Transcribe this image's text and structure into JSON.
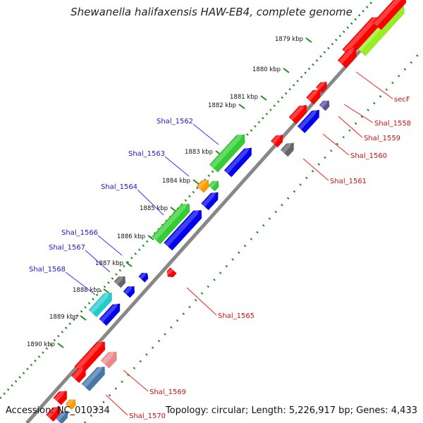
{
  "title": "Shewanella halifaxensis HAW-EB4, complete genome",
  "footer": {
    "accession": "Accession: NC_010334",
    "topology": "Topology: circular; Length: 5,226,917 bp; Genes: 4,433"
  },
  "colors": {
    "backbone": "#888888",
    "tick_dots": "#228822",
    "label_blue": "#1a1acc",
    "label_red": "#cc1111",
    "label_line_blue": "#3333ff",
    "label_line_red": "#ee2222"
  },
  "ticks": [
    {
      "label": "1879 kbp"
    },
    {
      "label": "1880 kbp"
    },
    {
      "label": "1881 kbp"
    },
    {
      "label": "1882 kbp"
    },
    {
      "label": "1883 kbp"
    },
    {
      "label": "1884 kbp"
    },
    {
      "label": "1885 kbp"
    },
    {
      "label": "1886 kbp"
    },
    {
      "label": "1887 kbp"
    },
    {
      "label": "1888 kbp"
    },
    {
      "label": "1889 kbp"
    },
    {
      "label": "1890 kbp"
    }
  ],
  "genes_left": [
    {
      "name": "Shal_1562"
    },
    {
      "name": "Shal_1563"
    },
    {
      "name": "Shal_1564"
    },
    {
      "name": "Shal_1566"
    },
    {
      "name": "Shal_1567"
    },
    {
      "name": "Shal_1568"
    }
  ],
  "genes_right": [
    {
      "name": "secF"
    },
    {
      "name": "Shal_1558"
    },
    {
      "name": "Shal_1559"
    },
    {
      "name": "Shal_1560"
    },
    {
      "name": "Shal_1561"
    },
    {
      "name": "Shal_1565"
    },
    {
      "name": "Shal_1569"
    },
    {
      "name": "Shal_1570"
    }
  ],
  "feature_colors": {
    "red": "#ff0000",
    "lime": "#99ee22",
    "green": "#33cc33",
    "blue": "#0000ee",
    "gray": "#666666",
    "orange": "#ff9900",
    "navy": "#555599",
    "cyan": "#22cccc",
    "pink": "#ee8888",
    "steel": "#4477aa"
  }
}
